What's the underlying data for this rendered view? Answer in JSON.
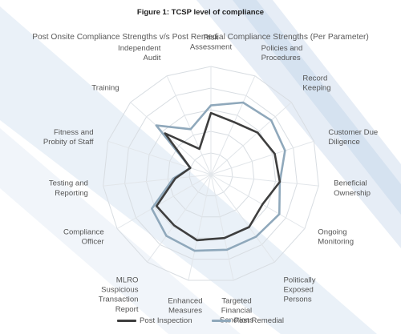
{
  "figure": {
    "title": "Figure 1: TCSP level of compliance",
    "subtitle": "Post Onsite Compliance Strengths v/s Post Remedial Compliance Strengths (Per Parameter)"
  },
  "chart_data": {
    "type": "radar",
    "title": "Post Onsite Compliance Strengths v/s Post Remedial Compliance Strengths (Per Parameter)",
    "categories": [
      "Risk Assessment",
      "Policies and Procedures",
      "Record Keeping",
      "Customer Due Diligence",
      "Beneficial Ownership",
      "Ongoing Monitoring",
      "Politically Exposed Persons",
      "Targeted Financial Sanctions",
      "Enhanced Measures",
      "MLRO Suspicious Transaction Report",
      "Compliance Officer",
      "Testing and Reporting",
      "Fitness and Probity of Staff",
      "Training",
      "Independent Audit"
    ],
    "label_lines": [
      [
        "Risk",
        "Assessment"
      ],
      [
        "Policies and",
        "Procedures"
      ],
      [
        "Record",
        "Keeping"
      ],
      [
        "Customer Due",
        "Diligence"
      ],
      [
        "Beneficial",
        "Ownership"
      ],
      [
        "Ongoing",
        "Monitoring"
      ],
      [
        "Politically",
        "Exposed",
        "Persons"
      ],
      [
        "Targeted",
        "Financial",
        "Sanctions"
      ],
      [
        "Enhanced",
        "Measures"
      ],
      [
        "MLRO",
        "Suspicious",
        "Transaction",
        "Report"
      ],
      [
        "Compliance",
        "Officer"
      ],
      [
        "Testing and",
        "Reporting"
      ],
      [
        "Fitness and",
        "Probity of Staff"
      ],
      [
        "Training"
      ],
      [
        "Independent",
        "Audit"
      ]
    ],
    "rlim": [
      0,
      100
    ],
    "grid_levels": [
      20,
      40,
      60,
      80,
      100
    ],
    "grid": true,
    "legend_position": "bottom",
    "series": [
      {
        "name": "Post Inspection",
        "color": "#3e3e3e",
        "values": [
          57,
          53,
          58,
          62,
          64,
          55,
          60,
          60,
          62,
          58,
          58,
          33,
          20,
          57,
          26
        ]
      },
      {
        "name": "Post Remedial",
        "color": "#8fa8bb",
        "values": [
          64,
          73,
          75,
          72,
          64,
          73,
          71,
          71,
          72,
          70,
          63,
          35,
          20,
          68,
          46
        ]
      }
    ]
  }
}
